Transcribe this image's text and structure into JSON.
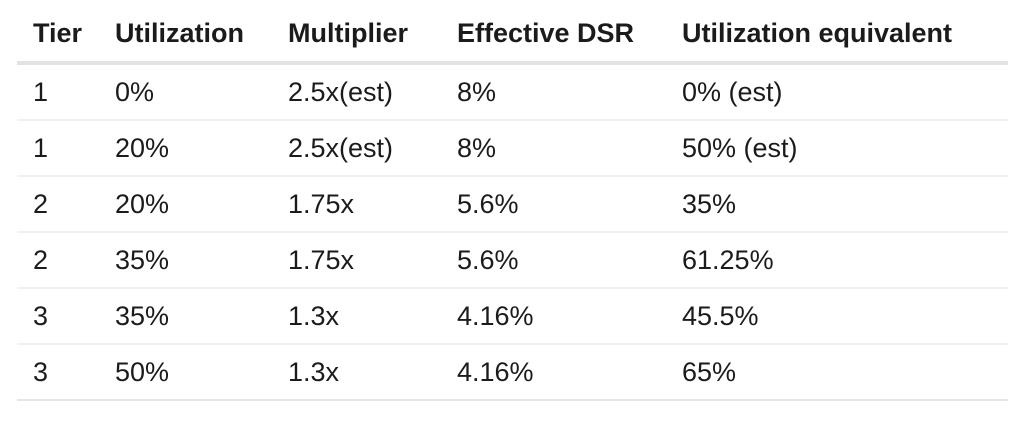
{
  "chart_data": {
    "type": "table",
    "columns": [
      "Tier",
      "Utilization",
      "Multiplier",
      "Effective DSR",
      "Utilization equivalent"
    ],
    "rows": [
      [
        "1",
        "0%",
        "2.5x(est)",
        "8%",
        "0% (est)"
      ],
      [
        "1",
        "20%",
        "2.5x(est)",
        "8%",
        "50% (est)"
      ],
      [
        "2",
        "20%",
        "1.75x",
        "5.6%",
        "35%"
      ],
      [
        "2",
        "35%",
        "1.75x",
        "5.6%",
        "61.25%"
      ],
      [
        "3",
        "35%",
        "1.3x",
        "4.16%",
        "45.5%"
      ],
      [
        "3",
        "50%",
        "1.3x",
        "4.16%",
        "65%"
      ]
    ],
    "layout": {
      "grid": "horizontal-row-separators",
      "header_position": "top"
    }
  },
  "colors": {
    "background": "#ffffff",
    "text": "#1b1b1b",
    "header_border": "#e3e3e3",
    "row_border": "#f0f0f0",
    "bottom_border": "#e5e5e5"
  }
}
